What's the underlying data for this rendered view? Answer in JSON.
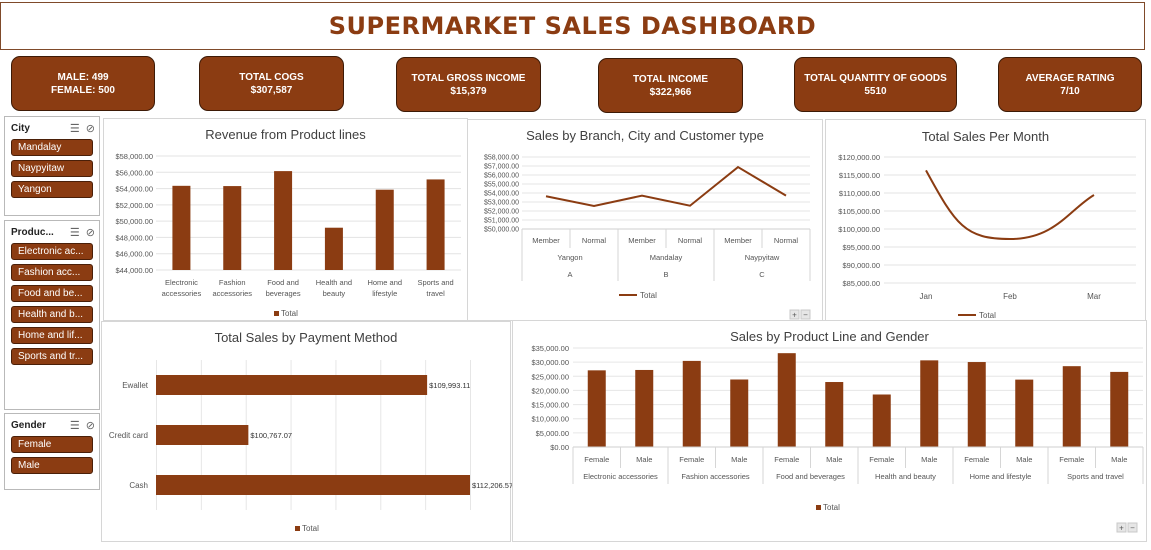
{
  "header": {
    "title": "SUPERMARKET SALES DASHBOARD"
  },
  "colors": {
    "accent": "#8b3c12"
  },
  "kpis": [
    {
      "line1": "MALE:  499",
      "line2": "FEMALE: 500"
    },
    {
      "line1": "TOTAL COGS",
      "line2": "$307,587"
    },
    {
      "line1": "TOTAL GROSS INCOME",
      "line2": "$15,379"
    },
    {
      "line1": "TOTAL INCOME",
      "line2": "$322,966"
    },
    {
      "line1": "TOTAL QUANTITY OF GOODS",
      "line2": "5510"
    },
    {
      "line1": "AVERAGE RATING",
      "line2": "7/10"
    }
  ],
  "slicers": {
    "city": {
      "title": "City",
      "items": [
        "Mandalay",
        "Naypyitaw",
        "Yangon"
      ]
    },
    "product": {
      "title": "Produc...",
      "items": [
        "Electronic ac...",
        "Fashion acc...",
        "Food and be...",
        "Health and b...",
        "Home and lif...",
        "Sports and tr..."
      ]
    },
    "gender": {
      "title": "Gender",
      "items": [
        "Female",
        "Male"
      ]
    }
  },
  "chart_data": [
    {
      "type": "bar",
      "title": "Revenue from Product lines",
      "categories": [
        "Electronic accessories",
        "Fashion accessories",
        "Food and beverages",
        "Health and beauty",
        "Home and lifestyle",
        "Sports and travel"
      ],
      "category_lines": [
        [
          "Electronic",
          "accessories"
        ],
        [
          "Fashion",
          "accessories"
        ],
        [
          "Food and",
          "beverages"
        ],
        [
          "Health and",
          "beauty"
        ],
        [
          "Home and",
          "lifestyle"
        ],
        [
          "Sports and",
          "travel"
        ]
      ],
      "series": [
        {
          "name": "Total",
          "values": [
            54337.5,
            54305.9,
            56144.8,
            49193.7,
            53861.9,
            55122.8
          ]
        }
      ],
      "ylim": [
        44000,
        58000
      ],
      "yticks": [
        "$58,000.00",
        "$56,000.00",
        "$54,000.00",
        "$52,000.00",
        "$50,000.00",
        "$48,000.00",
        "$46,000.00",
        "$44,000.00"
      ],
      "legend": "bottom"
    },
    {
      "type": "line",
      "title": "Sales by Branch, City and Customer type",
      "categories": [
        "Member",
        "Normal",
        "Member",
        "Normal",
        "Member",
        "Normal"
      ],
      "cities": [
        "Yangon",
        "Mandalay",
        "Naypyitaw"
      ],
      "branches": [
        "A",
        "B",
        "C"
      ],
      "series": [
        {
          "name": "Total",
          "values": [
            53637,
            52563,
            53704,
            52587,
            56881,
            53713
          ]
        }
      ],
      "ylim": [
        50000,
        58000
      ],
      "yticks": [
        "$58,000.00",
        "$57,000.00",
        "$56,000.00",
        "$55,000.00",
        "$54,000.00",
        "$53,000.00",
        "$52,000.00",
        "$51,000.00",
        "$50,000.00"
      ],
      "legend": "bottom"
    },
    {
      "type": "line",
      "title": "Total Sales Per Month",
      "categories": [
        "Jan",
        "Feb",
        "Mar"
      ],
      "series": [
        {
          "name": "Total",
          "values": [
            116291.87,
            97219.37,
            109455.51
          ]
        }
      ],
      "ylim": [
        85000,
        120000
      ],
      "yticks": [
        "$120,000.00",
        "$115,000.00",
        "$110,000.00",
        "$105,000.00",
        "$100,000.00",
        "$95,000.00",
        "$90,000.00",
        "$85,000.00"
      ],
      "legend": "bottom"
    },
    {
      "type": "bar",
      "orientation": "horizontal",
      "title": "Total Sales by Payment Method",
      "categories": [
        "Ewallet",
        "Credit card",
        "Cash"
      ],
      "series": [
        {
          "name": "Total",
          "values": [
            109993.11,
            100767.07,
            112206.57
          ]
        }
      ],
      "data_labels": [
        "$109,993.11",
        "$100,767.07",
        "$112,206.57"
      ],
      "legend": "bottom"
    },
    {
      "type": "bar",
      "title": "Sales by Product Line and Gender",
      "categories": [
        "Female",
        "Male",
        "Female",
        "Male",
        "Female",
        "Male",
        "Female",
        "Male",
        "Female",
        "Male",
        "Female",
        "Male"
      ],
      "groups": [
        "Electronic accessories",
        "Fashion accessories",
        "Food and beverages",
        "Health and beauty",
        "Home and lifestyle",
        "Sports and travel"
      ],
      "series": [
        {
          "name": "Total",
          "values": [
            27102,
            27235,
            30437,
            23868,
            33171,
            22973,
            18561,
            30633,
            30037,
            23825,
            28575,
            26548
          ]
        }
      ],
      "ylim": [
        0,
        35000
      ],
      "yticks": [
        "$35,000.00",
        "$30,000.00",
        "$25,000.00",
        "$20,000.00",
        "$15,000.00",
        "$10,000.00",
        "$5,000.00",
        "$0.00"
      ],
      "legend": "bottom"
    }
  ]
}
